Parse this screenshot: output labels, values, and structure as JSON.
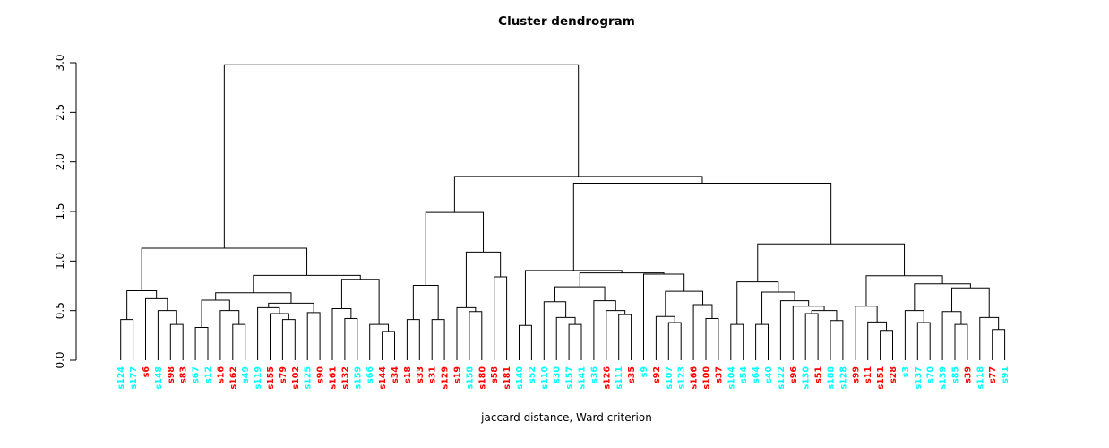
{
  "title": "Cluster dendrogram",
  "x_axis_label": "jaccard distance, Ward criterion",
  "y_axis": {
    "ticks": [
      "0.0",
      "0.5",
      "1.0",
      "1.5",
      "2.0",
      "2.5",
      "3.0"
    ],
    "min": 0,
    "max": 3
  },
  "colors": {
    "red": "#FF0000",
    "cyan": "#00FFFF",
    "line": "#000000",
    "background": "#FFFFFF"
  },
  "chart_data": {
    "type": "dendrogram",
    "title": "Cluster dendrogram",
    "xlabel": "jaccard distance, Ward criterion",
    "ylim": [
      0,
      3
    ],
    "grid": false,
    "leaves": [
      {
        "label": "s124",
        "color": "cyan"
      },
      {
        "label": "s177",
        "color": "cyan"
      },
      {
        "label": "s6",
        "color": "red"
      },
      {
        "label": "s148",
        "color": "cyan"
      },
      {
        "label": "s98",
        "color": "red"
      },
      {
        "label": "s83",
        "color": "red"
      },
      {
        "label": "s67",
        "color": "cyan"
      },
      {
        "label": "s12",
        "color": "cyan"
      },
      {
        "label": "s16",
        "color": "red"
      },
      {
        "label": "s162",
        "color": "red"
      },
      {
        "label": "s49",
        "color": "cyan"
      },
      {
        "label": "s119",
        "color": "cyan"
      },
      {
        "label": "s155",
        "color": "red"
      },
      {
        "label": "s79",
        "color": "red"
      },
      {
        "label": "s102",
        "color": "red"
      },
      {
        "label": "s125",
        "color": "cyan"
      },
      {
        "label": "s90",
        "color": "red"
      },
      {
        "label": "s161",
        "color": "red"
      },
      {
        "label": "s132",
        "color": "red"
      },
      {
        "label": "s159",
        "color": "cyan"
      },
      {
        "label": "s66",
        "color": "cyan"
      },
      {
        "label": "s144",
        "color": "red"
      },
      {
        "label": "s34",
        "color": "red"
      },
      {
        "label": "s18",
        "color": "red"
      },
      {
        "label": "s33",
        "color": "red"
      },
      {
        "label": "s31",
        "color": "red"
      },
      {
        "label": "s129",
        "color": "red"
      },
      {
        "label": "s19",
        "color": "red"
      },
      {
        "label": "s158",
        "color": "cyan"
      },
      {
        "label": "s180",
        "color": "red"
      },
      {
        "label": "s58",
        "color": "red"
      },
      {
        "label": "s181",
        "color": "red"
      },
      {
        "label": "s140",
        "color": "cyan"
      },
      {
        "label": "s52",
        "color": "cyan"
      },
      {
        "label": "s110",
        "color": "cyan"
      },
      {
        "label": "s30",
        "color": "cyan"
      },
      {
        "label": "s157",
        "color": "cyan"
      },
      {
        "label": "s141",
        "color": "cyan"
      },
      {
        "label": "s36",
        "color": "cyan"
      },
      {
        "label": "s126",
        "color": "red"
      },
      {
        "label": "s111",
        "color": "cyan"
      },
      {
        "label": "s35",
        "color": "red"
      },
      {
        "label": "s9",
        "color": "cyan"
      },
      {
        "label": "s92",
        "color": "red"
      },
      {
        "label": "s107",
        "color": "cyan"
      },
      {
        "label": "s123",
        "color": "cyan"
      },
      {
        "label": "s166",
        "color": "red"
      },
      {
        "label": "s100",
        "color": "red"
      },
      {
        "label": "s37",
        "color": "red"
      },
      {
        "label": "s104",
        "color": "cyan"
      },
      {
        "label": "s54",
        "color": "cyan"
      },
      {
        "label": "s64",
        "color": "cyan"
      },
      {
        "label": "s40",
        "color": "cyan"
      },
      {
        "label": "s122",
        "color": "cyan"
      },
      {
        "label": "s96",
        "color": "red"
      },
      {
        "label": "s130",
        "color": "cyan"
      },
      {
        "label": "s51",
        "color": "red"
      },
      {
        "label": "s188",
        "color": "cyan"
      },
      {
        "label": "s128",
        "color": "cyan"
      },
      {
        "label": "s99",
        "color": "red"
      },
      {
        "label": "s11",
        "color": "red"
      },
      {
        "label": "s151",
        "color": "red"
      },
      {
        "label": "s28",
        "color": "red"
      },
      {
        "label": "s3",
        "color": "cyan"
      },
      {
        "label": "s137",
        "color": "cyan"
      },
      {
        "label": "s70",
        "color": "cyan"
      },
      {
        "label": "s139",
        "color": "cyan"
      },
      {
        "label": "s85",
        "color": "cyan"
      },
      {
        "label": "s39",
        "color": "red"
      },
      {
        "label": "s118",
        "color": "cyan"
      },
      {
        "label": "s77",
        "color": "red"
      },
      {
        "label": "s91",
        "color": "cyan"
      }
    ],
    "tree": {
      "h": 2.98,
      "c": [
        {
          "h": 1.13,
          "c": [
            {
              "h": 0.7,
              "c": [
                {
                  "h": 0.41,
                  "c": [
                    "s124",
                    "s177"
                  ]
                },
                {
                  "h": 0.62,
                  "c": [
                    "s6",
                    {
                      "h": 0.5,
                      "c": [
                        "s148",
                        {
                          "h": 0.36,
                          "c": [
                            "s98",
                            "s83"
                          ]
                        }
                      ]
                    }
                  ]
                }
              ]
            },
            {
              "h": 0.855,
              "c": [
                {
                  "h": 0.68,
                  "c": [
                    {
                      "h": 0.605,
                      "c": [
                        {
                          "h": 0.33,
                          "c": [
                            "s67",
                            "s12"
                          ]
                        },
                        {
                          "h": 0.5,
                          "c": [
                            "s16",
                            {
                              "h": 0.36,
                              "c": [
                                "s162",
                                "s49"
                              ]
                            }
                          ]
                        }
                      ]
                    },
                    {
                      "h": 0.575,
                      "c": [
                        {
                          "h": 0.53,
                          "c": [
                            "s119",
                            {
                              "h": 0.47,
                              "c": [
                                "s155",
                                {
                                  "h": 0.41,
                                  "c": [
                                    "s79",
                                    "s102"
                                  ]
                                }
                              ]
                            }
                          ]
                        },
                        {
                          "h": 0.48,
                          "c": [
                            "s125",
                            "s90"
                          ]
                        }
                      ]
                    }
                  ]
                },
                {
                  "h": 0.815,
                  "c": [
                    {
                      "h": 0.52,
                      "c": [
                        "s161",
                        {
                          "h": 0.42,
                          "c": [
                            "s132",
                            "s159"
                          ]
                        }
                      ]
                    },
                    {
                      "h": 0.36,
                      "c": [
                        "s66",
                        {
                          "h": 0.29,
                          "c": [
                            "s144",
                            "s34"
                          ]
                        }
                      ]
                    }
                  ]
                }
              ]
            }
          ]
        },
        {
          "h": 1.854,
          "c": [
            {
              "h": 1.49,
              "c": [
                {
                  "h": 0.755,
                  "c": [
                    {
                      "h": 0.41,
                      "c": [
                        "s18",
                        "s33"
                      ]
                    },
                    {
                      "h": 0.41,
                      "c": [
                        "s31",
                        "s129"
                      ]
                    }
                  ]
                },
                {
                  "h": 1.09,
                  "c": [
                    {
                      "h": 0.53,
                      "c": [
                        "s19",
                        {
                          "h": 0.49,
                          "c": [
                            "s158",
                            "s180"
                          ]
                        }
                      ]
                    },
                    {
                      "h": 0.84,
                      "c": [
                        "s58",
                        "s181"
                      ]
                    }
                  ]
                }
              ]
            },
            {
              "h": 1.785,
              "c": [
                {
                  "h": 0.905,
                  "c": [
                    {
                      "h": 0.35,
                      "c": [
                        "s140",
                        "s52"
                      ]
                    },
                    {
                      "h": 0.88,
                      "c": [
                        {
                          "h": 0.74,
                          "c": [
                            {
                              "h": 0.59,
                              "c": [
                                "s110",
                                {
                                  "h": 0.43,
                                  "c": [
                                    "s30",
                                    {
                                      "h": 0.36,
                                      "c": [
                                        "s157",
                                        "s141"
                                      ]
                                    }
                                  ]
                                }
                              ]
                            },
                            {
                              "h": 0.6,
                              "c": [
                                "s36",
                                {
                                  "h": 0.5,
                                  "c": [
                                    "s126",
                                    {
                                      "h": 0.46,
                                      "c": [
                                        "s111",
                                        "s35"
                                      ]
                                    }
                                  ]
                                }
                              ]
                            }
                          ]
                        },
                        {
                          "h": 0.867,
                          "c": [
                            "s9",
                            {
                              "h": 0.695,
                              "c": [
                                {
                                  "h": 0.44,
                                  "c": [
                                    "s92",
                                    {
                                      "h": 0.38,
                                      "c": [
                                        "s107",
                                        "s123"
                                      ]
                                    }
                                  ]
                                },
                                {
                                  "h": 0.56,
                                  "c": [
                                    "s166",
                                    {
                                      "h": 0.42,
                                      "c": [
                                        "s100",
                                        "s37"
                                      ]
                                    }
                                  ]
                                }
                              ]
                            }
                          ]
                        }
                      ]
                    }
                  ]
                },
                {
                  "h": 1.172,
                  "c": [
                    {
                      "h": 0.79,
                      "c": [
                        {
                          "h": 0.36,
                          "c": [
                            "s104",
                            "s54"
                          ]
                        },
                        {
                          "h": 0.687,
                          "c": [
                            {
                              "h": 0.36,
                              "c": [
                                "s64",
                                "s40"
                              ]
                            },
                            {
                              "h": 0.6,
                              "c": [
                                "s122",
                                {
                                  "h": 0.545,
                                  "c": [
                                    "s96",
                                    {
                                      "h": 0.5,
                                      "c": [
                                        {
                                          "h": 0.47,
                                          "c": [
                                            "s130",
                                            "s51"
                                          ]
                                        },
                                        {
                                          "h": 0.4,
                                          "c": [
                                            "s188",
                                            "s128"
                                          ]
                                        }
                                      ]
                                    }
                                  ]
                                }
                              ]
                            }
                          ]
                        }
                      ]
                    },
                    {
                      "h": 0.852,
                      "c": [
                        {
                          "h": 0.545,
                          "c": [
                            "s99",
                            {
                              "h": 0.385,
                              "c": [
                                "s11",
                                {
                                  "h": 0.3,
                                  "c": [
                                    "s151",
                                    "s28"
                                  ]
                                }
                              ]
                            }
                          ]
                        },
                        {
                          "h": 0.77,
                          "c": [
                            {
                              "h": 0.5,
                              "c": [
                                "s3",
                                {
                                  "h": 0.38,
                                  "c": [
                                    "s137",
                                    "s70"
                                  ]
                                }
                              ]
                            },
                            {
                              "h": 0.73,
                              "c": [
                                {
                                  "h": 0.49,
                                  "c": [
                                    "s139",
                                    {
                                      "h": 0.36,
                                      "c": [
                                        "s85",
                                        "s39"
                                      ]
                                    }
                                  ]
                                },
                                {
                                  "h": 0.43,
                                  "c": [
                                    "s118",
                                    {
                                      "h": 0.31,
                                      "c": [
                                        "s77",
                                        "s91"
                                      ]
                                    }
                                  ]
                                }
                              ]
                            }
                          ]
                        }
                      ]
                    }
                  ]
                }
              ]
            }
          ]
        }
      ]
    }
  }
}
